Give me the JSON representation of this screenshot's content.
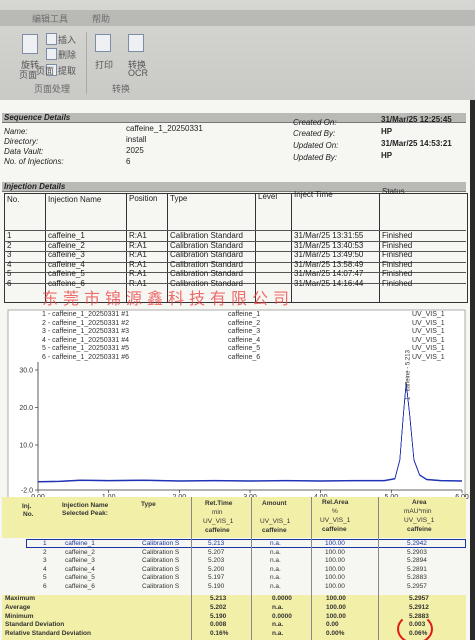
{
  "ribbon": {
    "menu_tabs": [
      "编辑工具",
      "帮助"
    ],
    "buttons": [
      {
        "id": "insert",
        "label": "插入"
      },
      {
        "id": "delete",
        "label": "删除"
      },
      {
        "id": "page",
        "label": "页面"
      },
      {
        "id": "extract",
        "label": "提取"
      },
      {
        "id": "print",
        "label": "打印"
      },
      {
        "id": "convert",
        "label": "转换"
      },
      {
        "id": "ocr",
        "label": "OCR"
      }
    ],
    "rotate_label_1": "旋转",
    "rotate_label_2": "页面",
    "groups": [
      "页面处理",
      "转换"
    ]
  },
  "sequence": {
    "title": "Sequence Details",
    "name_label": "Name:",
    "name_value": "caffeine_1_20250331",
    "directory_label": "Directory:",
    "directory_value": "install",
    "vault_label": "Data Vault:",
    "vault_value": "2025",
    "injections_label": "No. of Injections:",
    "injections_value": "6",
    "created_on_label": "Created On:",
    "created_on_value": "31/Mar/25 12:25:45",
    "created_by_label": "Created By:",
    "created_by_value": "HP",
    "updated_on_label": "Updated On:",
    "updated_on_value": "31/Mar/25 14:53:21",
    "updated_by_label": "Updated By:",
    "updated_by_value": "HP"
  },
  "injection_details": {
    "title": "Injection Details",
    "headers": [
      "No.",
      "Injection Name",
      "Position",
      "Type",
      "Level",
      "Inject Time",
      "Status"
    ],
    "rows": [
      {
        "no": "1",
        "name": "caffeine_1",
        "position": "R:A1",
        "type": "Calibration Standard",
        "time": "31/Mar/25 13:31:55",
        "status": "Finished"
      },
      {
        "no": "2",
        "name": "caffeine_2",
        "position": "R:A1",
        "type": "Calibration Standard",
        "time": "31/Mar/25 13:40:53",
        "status": "Finished"
      },
      {
        "no": "3",
        "name": "caffeine_3",
        "position": "R:A1",
        "type": "Calibration Standard",
        "time": "31/Mar/25 13:49:50",
        "status": "Finished"
      },
      {
        "no": "4",
        "name": "caffeine_4",
        "position": "R:A1",
        "type": "Calibration Standard",
        "time": "31/Mar/25 13:58:49",
        "status": "Finished"
      },
      {
        "no": "5",
        "name": "caffeine_5",
        "position": "R:A1",
        "type": "Calibration Standard",
        "time": "31/Mar/25 14:07:47",
        "status": "Finished"
      },
      {
        "no": "6",
        "name": "caffeine_6",
        "position": "R:A1",
        "type": "Calibration Standard",
        "time": "31/Mar/25 14:16:44",
        "status": "Finished"
      }
    ]
  },
  "watermark": "东莞市锦源鑫科技有限公司",
  "chart_legend": [
    {
      "trace": "1 - caffeine_1_20250331 #1",
      "injection": "caffeine_1",
      "channel": "UV_VIS_1"
    },
    {
      "trace": "2 - caffeine_1_20250331 #2",
      "injection": "caffeine_2",
      "channel": "UV_VIS_1"
    },
    {
      "trace": "3 - caffeine_1_20250331 #3",
      "injection": "caffeine_3",
      "channel": "UV_VIS_1"
    },
    {
      "trace": "4 - caffeine_1_20250331 #4",
      "injection": "caffeine_4",
      "channel": "UV_VIS_1"
    },
    {
      "trace": "5 - caffeine_1_20250331 #5",
      "injection": "caffeine_5",
      "channel": "UV_VIS_1"
    },
    {
      "trace": "6 - caffeine_1_20250331 #6",
      "injection": "caffeine_6",
      "channel": "UV_VIS_1"
    }
  ],
  "chart_data": {
    "type": "line",
    "xlim": [
      0.0,
      6.0
    ],
    "ylim": [
      -2.0,
      30.0
    ],
    "x_ticks": [
      "0.00",
      "1.00",
      "2.00",
      "3.00",
      "4.00",
      "5.00",
      "6.00"
    ],
    "y_ticks": [
      "30.0",
      "20.0",
      "10.0",
      "-2.0"
    ],
    "peak_label": "1 - caffeine - 5.213",
    "series": [
      {
        "x": [
          0.0,
          0.3,
          0.6,
          1.0,
          1.5,
          2.0,
          2.5,
          3.0,
          3.5,
          4.0,
          4.5,
          4.9,
          5.05,
          5.12,
          5.17,
          5.21,
          5.26,
          5.32,
          5.4,
          5.5,
          5.7,
          6.0
        ],
        "y": [
          0.2,
          0.3,
          0.6,
          0.5,
          0.6,
          0.4,
          0.5,
          0.4,
          0.5,
          0.4,
          0.5,
          0.5,
          1.0,
          6.0,
          18.0,
          26.5,
          18.0,
          6.0,
          2.0,
          0.8,
          0.5,
          0.4
        ]
      }
    ],
    "color": "#1b2fb5"
  },
  "results": {
    "headers": {
      "inj": "Inj.",
      "no": "No.",
      "injection_name": "Injection Name",
      "selected_peak": "Selected Peak:",
      "type": "Type",
      "ret_time": "Ret.Time",
      "ret_unit": "min",
      "ret_channel": "UV_VIS_1",
      "ret_peak": "caffeine",
      "amount": "Amount",
      "amount_channel": "UV_VIS_1",
      "amount_peak": "caffeine",
      "relarea": "Rel.Area",
      "relarea_unit": "%",
      "relarea_channel": "UV_VIS_1",
      "relarea_peak": "caffeine",
      "area": "Area",
      "area_unit": "mAU*min",
      "area_channel": "UV_VIS_1",
      "area_peak": "caffeine"
    },
    "rows": [
      {
        "no": "1",
        "name": "caffeine_1",
        "type": "Calibration S",
        "ret": "5.213",
        "amount": "n.a.",
        "relarea": "100.00",
        "area": "5.2942"
      },
      {
        "no": "2",
        "name": "caffeine_2",
        "type": "Calibration S",
        "ret": "5.207",
        "amount": "n.a.",
        "relarea": "100.00",
        "area": "5.2903"
      },
      {
        "no": "3",
        "name": "caffeine_3",
        "type": "Calibration S",
        "ret": "5.203",
        "amount": "n.a.",
        "relarea": "100.00",
        "area": "5.2894"
      },
      {
        "no": "4",
        "name": "caffeine_4",
        "type": "Calibration S",
        "ret": "5.200",
        "amount": "n.a.",
        "relarea": "100.00",
        "area": "5.2891"
      },
      {
        "no": "5",
        "name": "caffeine_5",
        "type": "Calibration S",
        "ret": "5.197",
        "amount": "n.a.",
        "relarea": "100.00",
        "area": "5.2883"
      },
      {
        "no": "6",
        "name": "caffeine_6",
        "type": "Calibration S",
        "ret": "5.190",
        "amount": "n.a.",
        "relarea": "100.00",
        "area": "5.2957"
      }
    ],
    "summary": [
      {
        "label": "Maximum",
        "ret": "5.213",
        "amount": "0.0000",
        "relarea": "100.00",
        "area": "5.2957"
      },
      {
        "label": "Average",
        "ret": "5.202",
        "amount": "n.a.",
        "relarea": "100.00",
        "area": "5.2912"
      },
      {
        "label": "Minimum",
        "ret": "5.190",
        "amount": "0.0000",
        "relarea": "100.00",
        "area": "5.2883"
      },
      {
        "label": "Standard Deviation",
        "ret": "0.008",
        "amount": "n.a.",
        "relarea": "0.00",
        "area": "0.003"
      },
      {
        "label": "Relative Standard Deviation",
        "ret": "0.16%",
        "amount": "n.a.",
        "relarea": "0.00%",
        "area": "0.06%"
      }
    ]
  }
}
